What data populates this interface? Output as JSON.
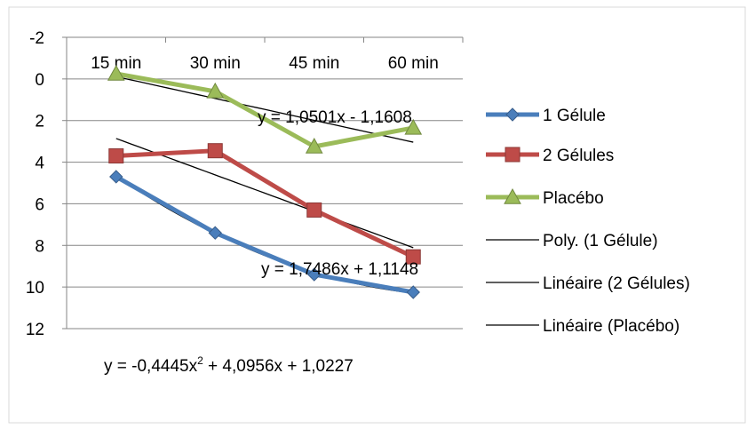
{
  "chart_data": {
    "type": "line",
    "title": "",
    "xlabel": "",
    "ylabel": "",
    "categories": [
      "15 min",
      "30 min",
      "45 min",
      "60 min"
    ],
    "y_axis": {
      "reversed": true,
      "min": -2,
      "max": 12,
      "step": 2,
      "tick_labels": [
        "-2",
        "0",
        "2",
        "4",
        "6",
        "8",
        "10",
        "12"
      ]
    },
    "grid": "horizontal",
    "legend_position": "right",
    "series": [
      {
        "name": "1 Gélule",
        "values": [
          4.7,
          7.4,
          9.4,
          10.25
        ],
        "color": "#4a7ebb",
        "marker": "diamond"
      },
      {
        "name": "2 Gélules",
        "values": [
          3.7,
          3.45,
          6.3,
          8.55
        ],
        "color": "#be4b48",
        "marker": "square"
      },
      {
        "name": "Placébo",
        "values": [
          -0.25,
          0.6,
          3.25,
          2.35
        ],
        "color": "#9bbb59",
        "marker": "triangle"
      }
    ],
    "trendlines": [
      {
        "name": "Poly. (1 Gélule)",
        "type": "polynomial",
        "coefficients": [
          -0.4445,
          4.0956,
          1.0227
        ],
        "color": "#000000",
        "equation_prefix": "y = -0,4445x",
        "equation_suffix": " + 4,0956x + 1,0227"
      },
      {
        "name": "Linéaire (2 Gélules)",
        "type": "linear",
        "coefficients": [
          1.7486,
          1.1148
        ],
        "color": "#000000",
        "equation": "y = 1,7486x + 1,1148"
      },
      {
        "name": "Linéaire (Placébo)",
        "type": "linear",
        "coefficients": [
          1.0501,
          -1.1608
        ],
        "color": "#000000",
        "equation": "y = 1,0501x - 1,1608"
      }
    ]
  }
}
